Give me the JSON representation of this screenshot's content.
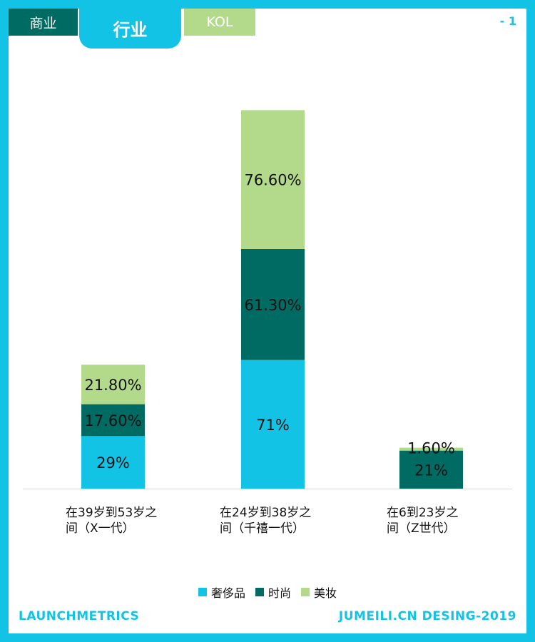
{
  "tabs": {
    "business": "商业",
    "industry": "行业",
    "kol": "KOL"
  },
  "page_number": "- 1",
  "footer": {
    "left": "LAUNCHMETRICS",
    "right": "JUMEILI.CN DESING-2019"
  },
  "colors": {
    "luxury": "#12c3e6",
    "fashion": "#006b63",
    "beauty": "#b3d98b",
    "frame": "#12c3e6"
  },
  "chart_data": {
    "type": "bar",
    "stacked": true,
    "categories": [
      [
        "在39岁到53岁之",
        "间（X一代）"
      ],
      [
        "在24岁到38岁之",
        "间（千禧一代）"
      ],
      [
        "在6到23岁之",
        "间（Z世代）"
      ]
    ],
    "series": [
      {
        "name": "奢侈品",
        "values": [
          29,
          71,
          0
        ],
        "labels": [
          "29%",
          "71%",
          ""
        ]
      },
      {
        "name": "时尚",
        "values": [
          17.6,
          61.3,
          21
        ],
        "labels": [
          "17.60%",
          "61.30%",
          "21%"
        ]
      },
      {
        "name": "美妆",
        "values": [
          21.8,
          76.6,
          1.6
        ],
        "labels": [
          "21.80%",
          "76.60%",
          "1.60%"
        ]
      }
    ],
    "ylim": [
      0,
      210
    ],
    "grid": false,
    "legend_position": "bottom"
  }
}
